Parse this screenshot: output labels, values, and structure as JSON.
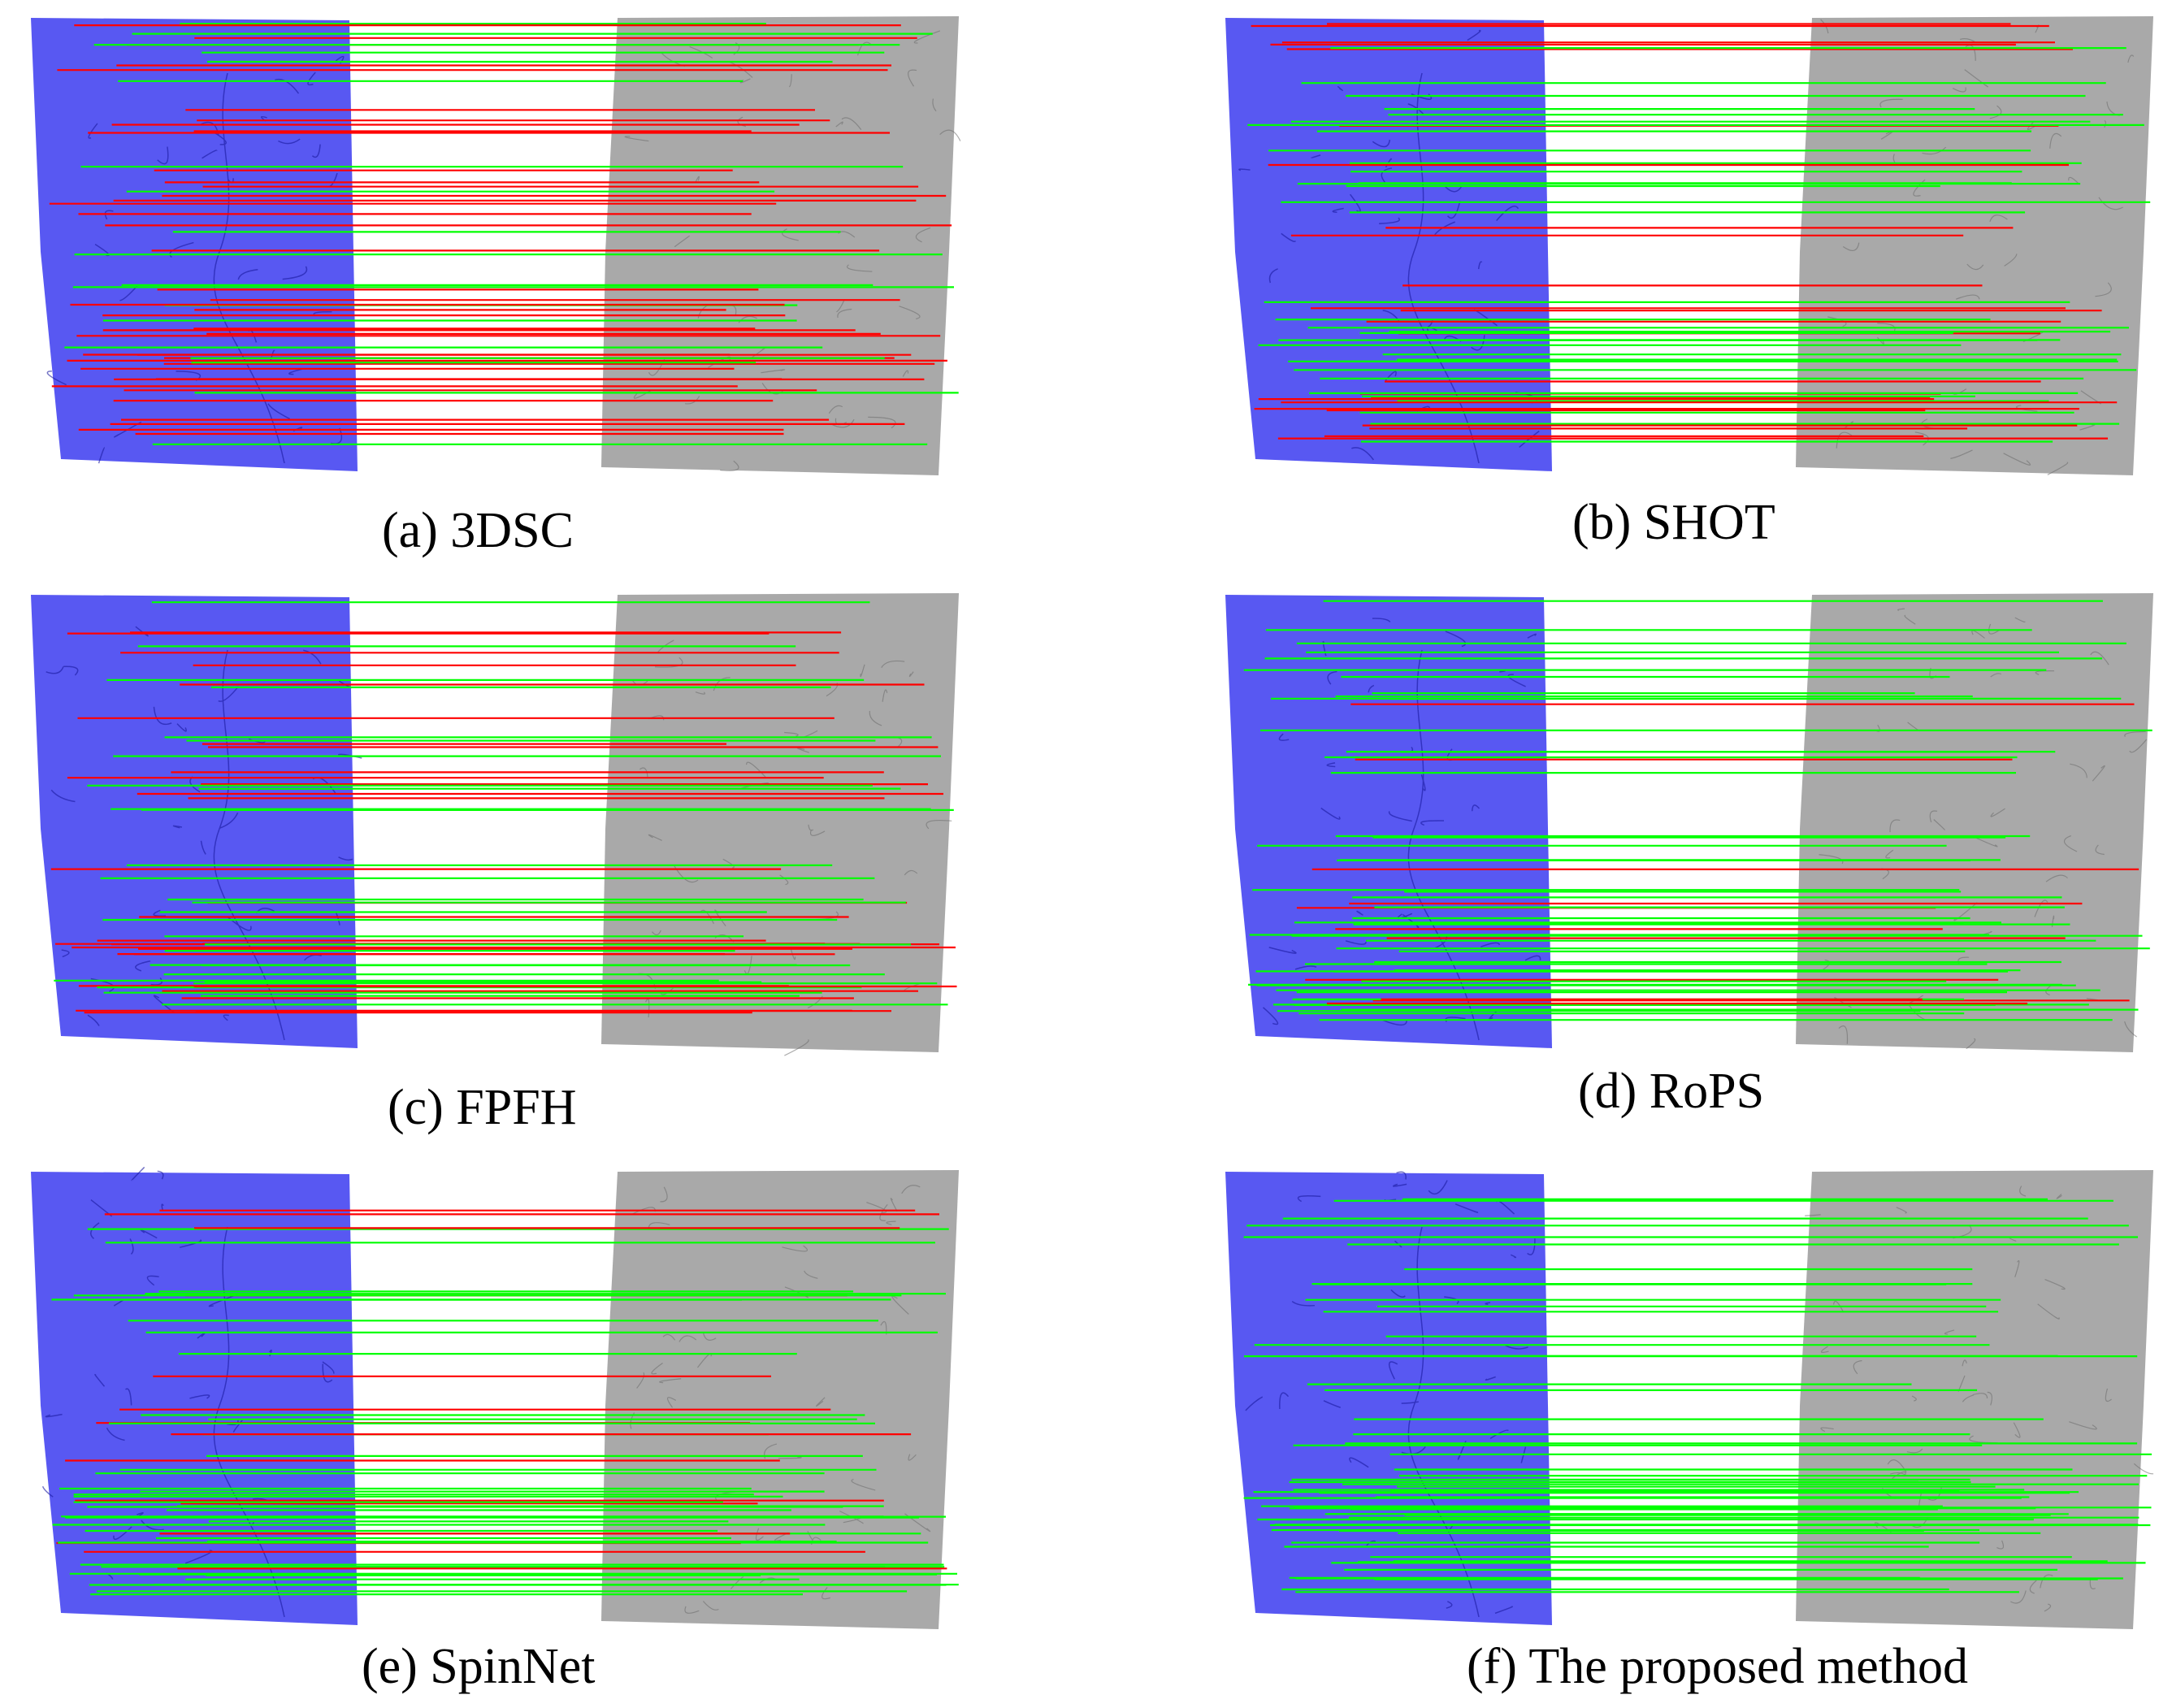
{
  "figure": {
    "panels": [
      {
        "id": "a",
        "caption": "(a) 3DSC",
        "match_pattern": "mostly-red"
      },
      {
        "id": "b",
        "caption": "(b) SHOT",
        "match_pattern": "mixed"
      },
      {
        "id": "c",
        "caption": "(c) FPFH",
        "match_pattern": "mixed"
      },
      {
        "id": "d",
        "caption": "(d) RoPS",
        "match_pattern": "mostly-green"
      },
      {
        "id": "e",
        "caption": "(e) SpinNet",
        "match_pattern": "mostly-green"
      },
      {
        "id": "f",
        "caption": "(f) The proposed method",
        "match_pattern": "all-green"
      }
    ],
    "colors": {
      "source_cloud": "#3b3bf0",
      "target_cloud": "#9a9a9a",
      "correct_match": "#00ff00",
      "wrong_match": "#ff0000"
    }
  }
}
